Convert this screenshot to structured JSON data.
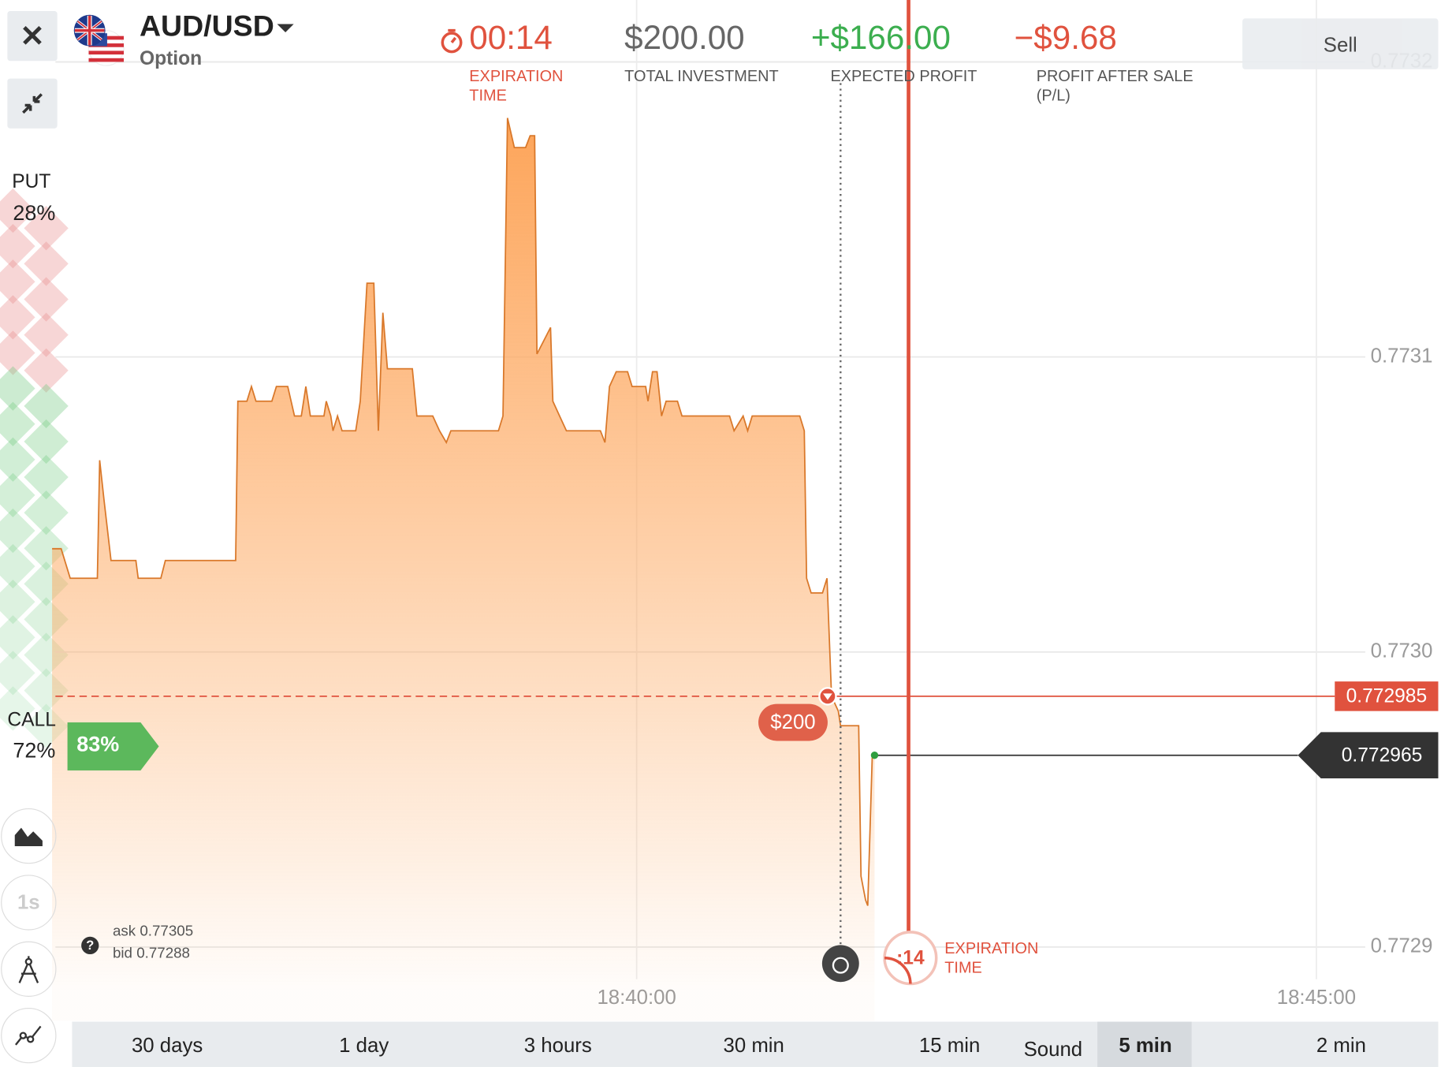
{
  "header": {
    "pair": "AUD/USD",
    "product": "Option",
    "timer": "00:14",
    "timer_label": "EXPIRATION TIME",
    "investment": "$200.00",
    "investment_label": "TOTAL INVESTMENT",
    "expected_profit": "+$166.00",
    "expected_profit_label": "EXPECTED PROFIT",
    "profit_after_sale": "−$9.68",
    "profit_after_sale_label": "PROFIT AFTER SALE (P/L)",
    "sell": "Sell"
  },
  "sentiment": {
    "put_label": "PUT",
    "put": "28%",
    "call_label": "CALL",
    "call": "72%",
    "payout": "83%"
  },
  "chart": {
    "type": "area",
    "color": "#d9782a",
    "fill": "#fda55a",
    "x": [
      "18:35:42",
      "18:35:46",
      "18:35:50",
      "18:36:02",
      "18:36:03",
      "18:36:05",
      "18:36:08",
      "18:36:19",
      "18:36:20",
      "18:36:30",
      "18:36:32",
      "18:37:03",
      "18:37:04",
      "18:37:08",
      "18:37:10",
      "18:37:12",
      "18:37:19",
      "18:37:21",
      "18:37:26",
      "18:37:29",
      "18:37:32",
      "18:37:34",
      "18:37:36",
      "18:37:42",
      "18:37:43",
      "18:37:45",
      "18:37:46",
      "18:37:48",
      "18:37:50",
      "18:37:56",
      "18:37:58",
      "18:38:01",
      "18:38:04",
      "18:38:06",
      "18:38:08",
      "18:38:10",
      "18:38:21",
      "18:38:23",
      "18:38:30",
      "18:38:33",
      "18:38:36",
      "18:38:38",
      "18:38:59",
      "18:39:01",
      "18:39:03",
      "18:39:06",
      "18:39:11",
      "18:39:13",
      "18:39:15",
      "18:39:16",
      "18:39:20",
      "18:39:22",
      "18:39:23",
      "18:39:26",
      "18:39:29",
      "18:39:44",
      "18:39:46",
      "18:39:48",
      "18:39:51",
      "18:39:56",
      "18:39:58",
      "18:40:04",
      "18:40:05",
      "18:40:07",
      "18:40:09",
      "18:40:11",
      "18:40:13",
      "18:40:18",
      "18:40:20",
      "18:40:41",
      "18:40:43",
      "18:40:47",
      "18:40:49",
      "18:40:51",
      "18:41:12",
      "18:41:14",
      "18:41:15",
      "18:41:17",
      "18:41:22",
      "18:41:24",
      "18:41:26",
      "18:41:29",
      "18:41:30",
      "18:41:38",
      "18:41:39",
      "18:41:41",
      "18:41:42",
      "18:41:44",
      "18:41:45"
    ],
    "values": [
      0.773035,
      0.773035,
      0.773025,
      0.773025,
      0.773065,
      0.773051,
      0.773031,
      0.773031,
      0.773025,
      0.773025,
      0.773031,
      0.773031,
      0.773085,
      0.773085,
      0.77309,
      0.773085,
      0.773085,
      0.77309,
      0.77309,
      0.77308,
      0.77308,
      0.77309,
      0.77308,
      0.77308,
      0.773085,
      0.77308,
      0.773075,
      0.77308,
      0.773075,
      0.773075,
      0.773085,
      0.773125,
      0.773125,
      0.773075,
      0.773115,
      0.773096,
      0.773096,
      0.77308,
      0.77308,
      0.773075,
      0.773071,
      0.773075,
      0.773075,
      0.77308,
      0.773181,
      0.773171,
      0.773171,
      0.773175,
      0.773175,
      0.773101,
      0.773107,
      0.77311,
      0.773085,
      0.77308,
      0.773075,
      0.773075,
      0.773071,
      0.77309,
      0.773095,
      0.773095,
      0.77309,
      0.77309,
      0.773085,
      0.773095,
      0.773095,
      0.77308,
      0.773085,
      0.773085,
      0.77308,
      0.77308,
      0.773075,
      0.77308,
      0.773075,
      0.77308,
      0.77308,
      0.773075,
      0.773025,
      0.77302,
      0.77302,
      0.773025,
      0.772985,
      0.77298,
      0.772975,
      0.772975,
      0.772924,
      0.772916,
      0.772914,
      0.772965,
      0.772965
    ],
    "xlim": [
      "18:35:50",
      "18:45:55"
    ],
    "xticks": [
      "18:40:00",
      "18:45:00"
    ],
    "ylim": [
      0.772875,
      0.773221
    ],
    "yticks": [
      0.7729,
      {
        "value": 0.773,
        "label": "0.7730"
      },
      0.7731,
      0.7732
    ],
    "grid": true,
    "strike": 0.772985,
    "strike_color": "#e0523e",
    "current": 0.772965,
    "investment_tag": "$200",
    "purchase_time": "18:41:30",
    "expiration_time": "18:42:00",
    "countdown": ":14",
    "expiration_label": "EXPIRATION TIME"
  },
  "quotes": {
    "ask_label": "ask",
    "ask": "0.77305",
    "bid_label": "bid",
    "bid": "0.77288"
  },
  "tools": {
    "interval": "1s"
  },
  "periods": [
    {
      "label": "30 days"
    },
    {
      "label": "1 day"
    },
    {
      "label": "3 hours"
    },
    {
      "label": "30 min"
    },
    {
      "label": "15 min"
    },
    {
      "label": "5 min",
      "selected": true
    },
    {
      "label": "2 min"
    }
  ],
  "sound": "Sound"
}
